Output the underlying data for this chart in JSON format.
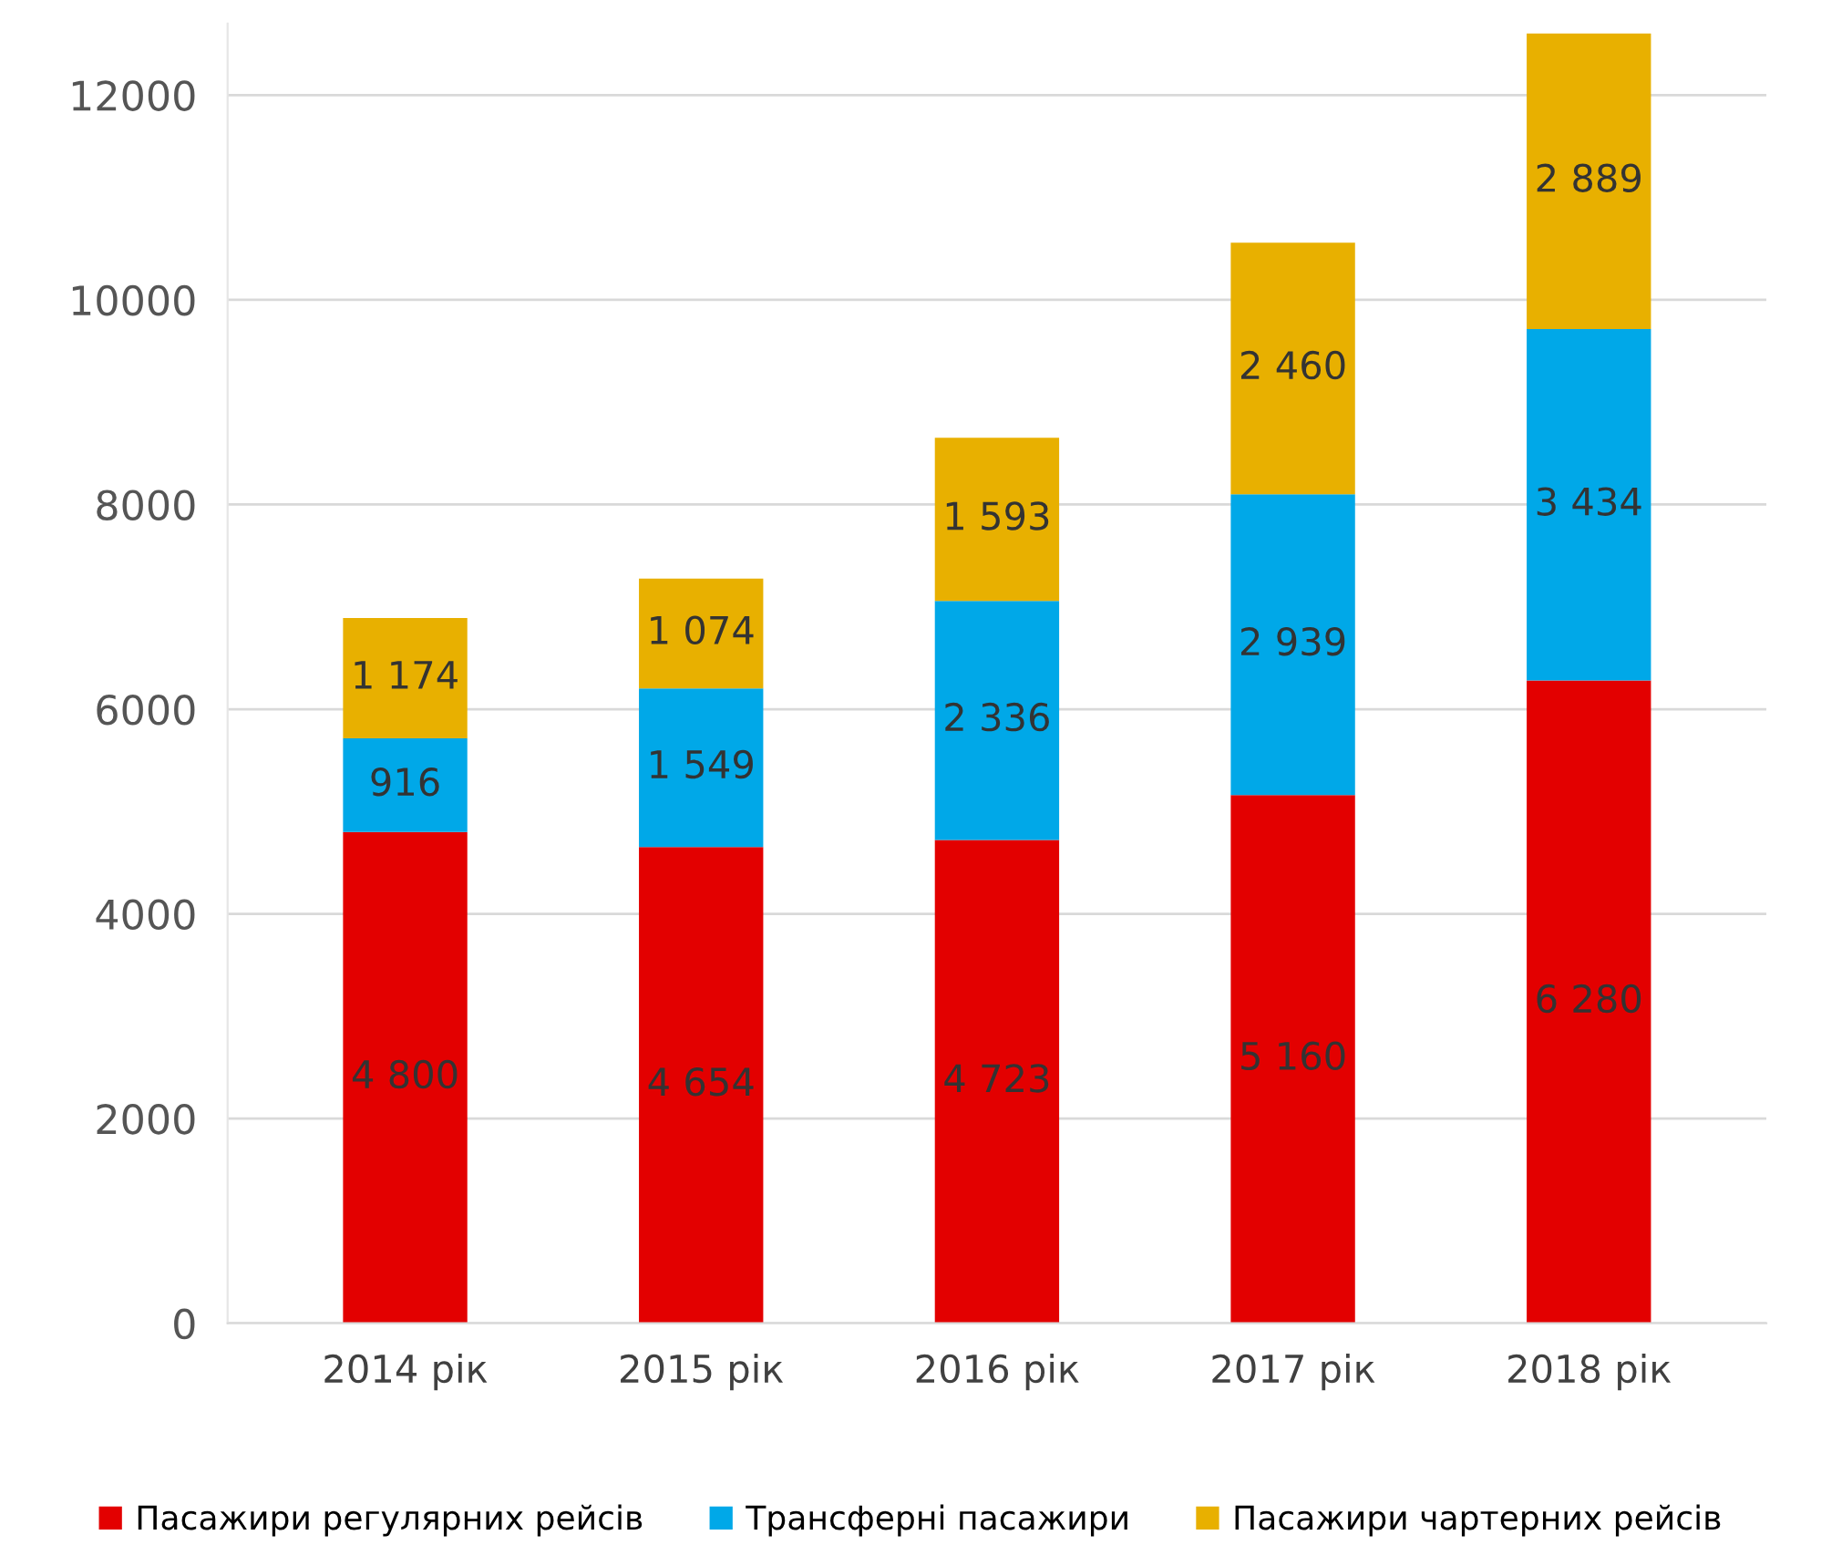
{
  "chart_data": {
    "type": "bar",
    "stacked": true,
    "categories": [
      "2014 рік",
      "2015 рік",
      "2016 рік",
      "2017 рік",
      "2018 рік"
    ],
    "series": [
      {
        "name": "Пасажири регулярних рейсів",
        "color": "#e30000",
        "values": [
          4800,
          4654,
          4723,
          5160,
          6280
        ],
        "value_labels": [
          "4 800",
          "4 654",
          "4 723",
          "5 160",
          "6 280"
        ]
      },
      {
        "name": "Трансферні пасажири",
        "color": "#00a8e8",
        "values": [
          916,
          1549,
          2336,
          2939,
          3434
        ],
        "value_labels": [
          "916",
          "1 549",
          "2 336",
          "2 939",
          "3 434"
        ]
      },
      {
        "name": "Пасажири чартерних рейсів",
        "color": "#e8b000",
        "values": [
          1174,
          1074,
          1593,
          2460,
          2889
        ],
        "value_labels": [
          "1 174",
          "1 074",
          "1 593",
          "2 460",
          "2 889"
        ]
      }
    ],
    "ylim": [
      0,
      12700
    ],
    "yticks": [
      0,
      2000,
      4000,
      6000,
      8000,
      10000,
      12000
    ],
    "grid": "y",
    "legend": "bottom"
  }
}
